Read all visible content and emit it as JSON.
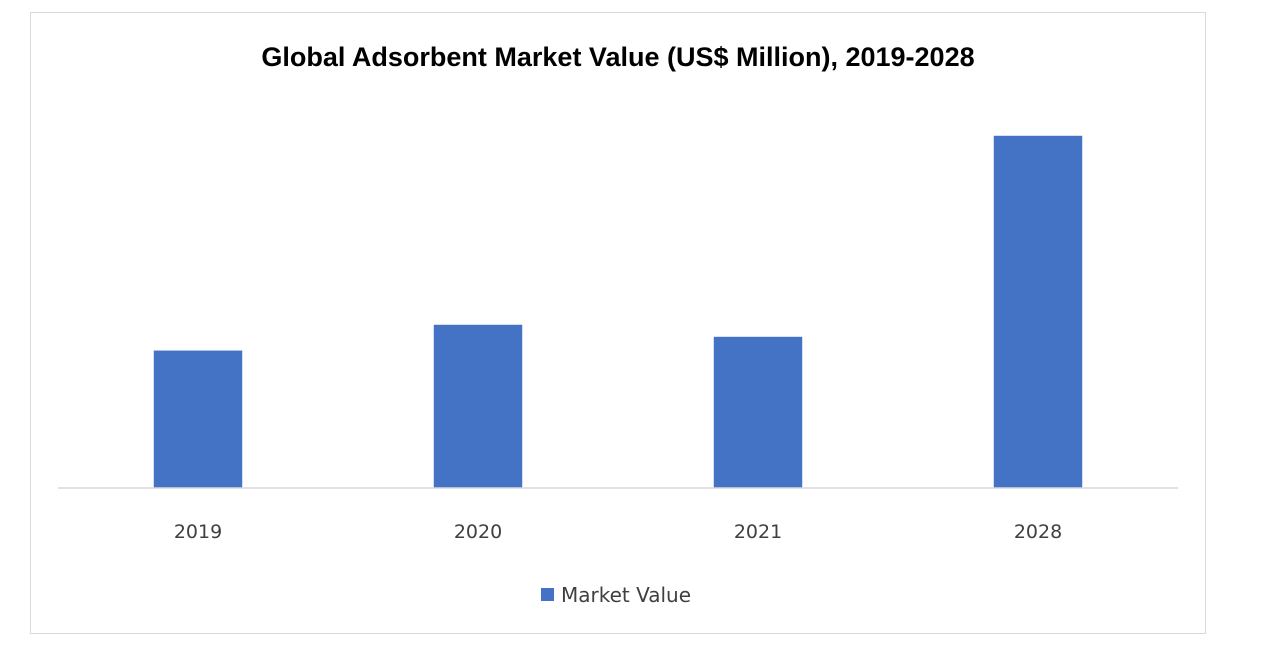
{
  "chart_data": {
    "type": "bar",
    "title": "Global Adsorbent Market Value (US$ Million), 2019-2028",
    "categories": [
      "2019",
      "2020",
      "2021",
      "2028"
    ],
    "series": [
      {
        "name": "Market Value",
        "values": [
          40,
          47.5,
          44,
          102.5
        ],
        "color": "#4472c4"
      }
    ],
    "xlabel": "",
    "ylabel": "",
    "ylim": [
      0,
      110
    ],
    "grid": false,
    "legend": "bottom-center"
  }
}
